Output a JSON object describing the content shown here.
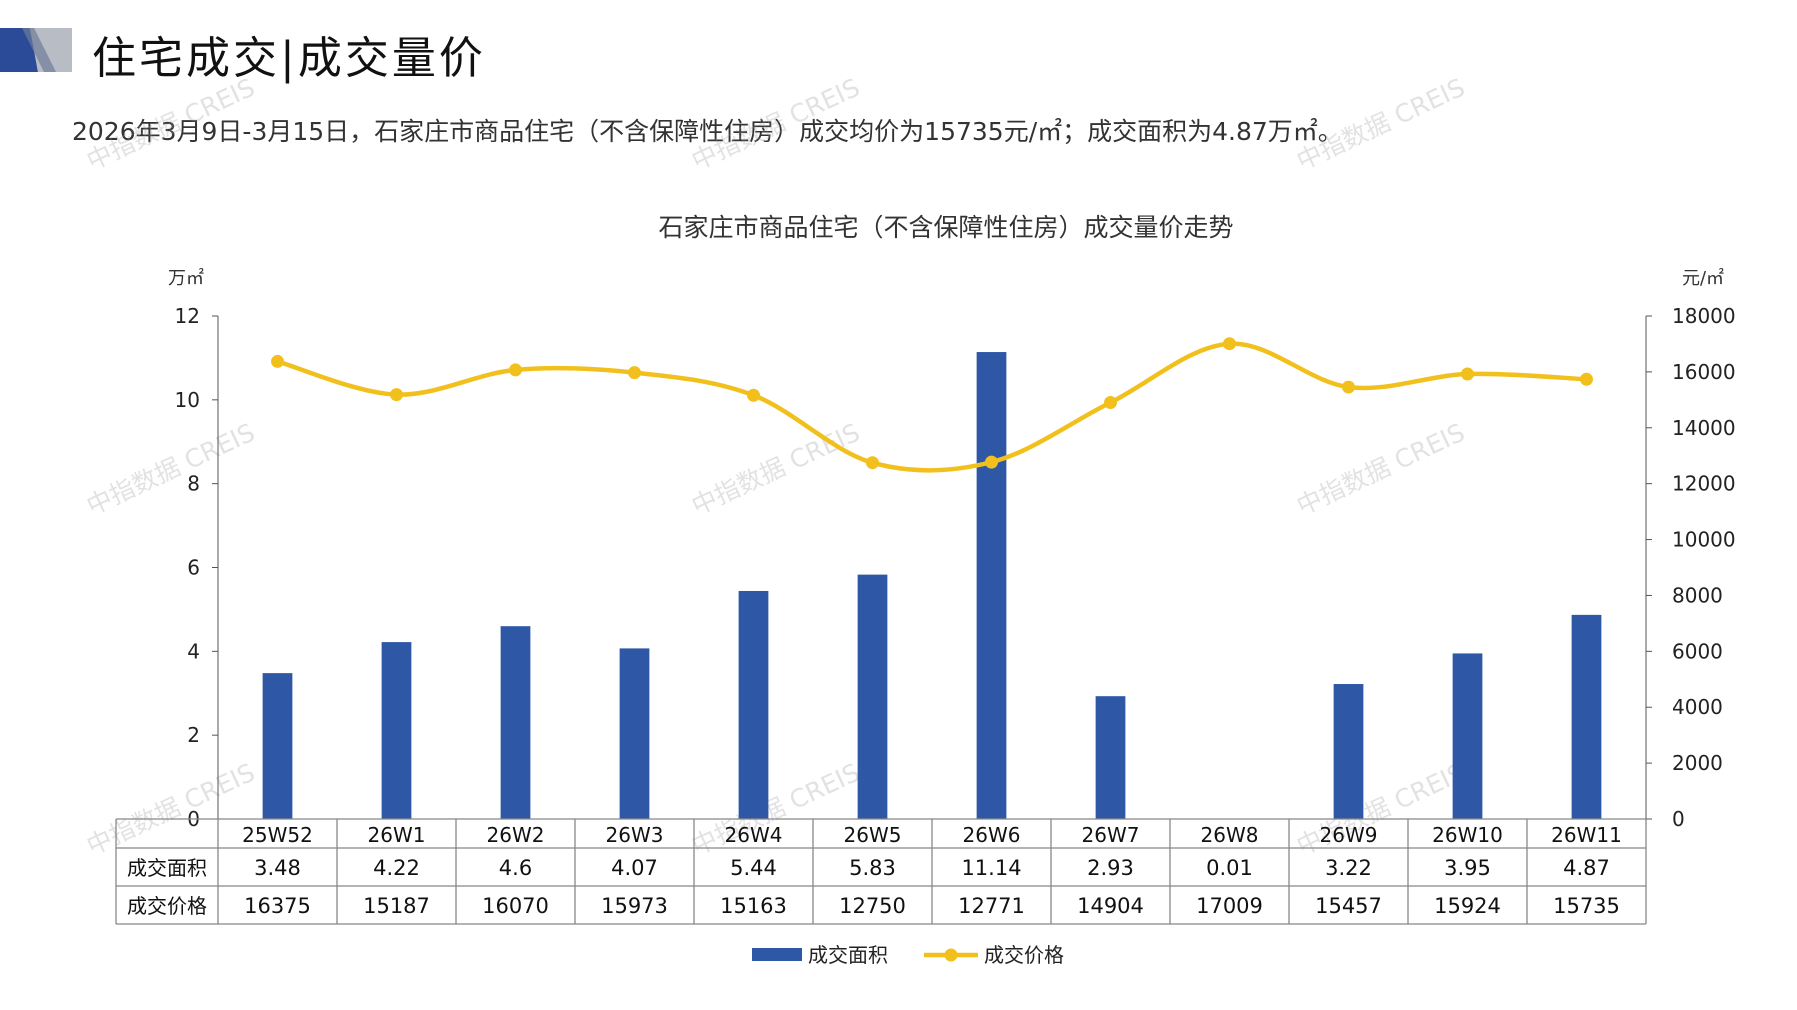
{
  "page": {
    "title": "住宅成交|成交量价",
    "summary": "2026年3月9日-3月15日，石家庄市商品住宅（不含保障性住房）成交均价为15735元/㎡；成交面积为4.87万㎡。",
    "watermark": "中指数据 CREIS"
  },
  "colors": {
    "bar": "#2E57A6",
    "line": "#F2C01D",
    "axis": "#555555",
    "grid": "#999999",
    "deco_dark": "#2B4A98",
    "deco_light": "#B8BCC4"
  },
  "chart_data": {
    "type": "bar",
    "title": "石家庄市商品住宅（不含保障性住房）成交量价走势",
    "categories": [
      "25W52",
      "26W1",
      "26W2",
      "26W3",
      "26W4",
      "26W5",
      "26W6",
      "26W7",
      "26W8",
      "26W9",
      "26W10",
      "26W11"
    ],
    "series": [
      {
        "name": "成交面积",
        "type": "bar",
        "axis": "left",
        "values": [
          3.48,
          4.22,
          4.6,
          4.07,
          5.44,
          5.83,
          11.14,
          2.93,
          0.01,
          3.22,
          3.95,
          4.87
        ],
        "labels": [
          "3.48",
          "4.22",
          "4.6",
          "4.07",
          "5.44",
          "5.83",
          "11.14",
          "2.93",
          "0.01",
          "3.22",
          "3.95",
          "4.87"
        ]
      },
      {
        "name": "成交价格",
        "type": "line",
        "axis": "right",
        "values": [
          16375,
          15187,
          16070,
          15973,
          15163,
          12750,
          12771,
          14904,
          17009,
          15457,
          15924,
          15735
        ],
        "labels": [
          "16375",
          "15187",
          "16070",
          "15973",
          "15163",
          "12750",
          "12771",
          "14904",
          "17009",
          "15457",
          "15924",
          "15735"
        ]
      }
    ],
    "ylabel_left": "万㎡",
    "ylabel_right": "元/㎡",
    "ylim_left": [
      0,
      12
    ],
    "ylim_right": [
      0,
      18000
    ],
    "yticks_left": [
      "0",
      "2",
      "4",
      "6",
      "8",
      "10",
      "12"
    ],
    "yticks_right": [
      "0",
      "2000",
      "4000",
      "6000",
      "8000",
      "10000",
      "12000",
      "14000",
      "16000",
      "18000"
    ],
    "grid": false,
    "legend_position": "bottom",
    "data_table": true
  }
}
